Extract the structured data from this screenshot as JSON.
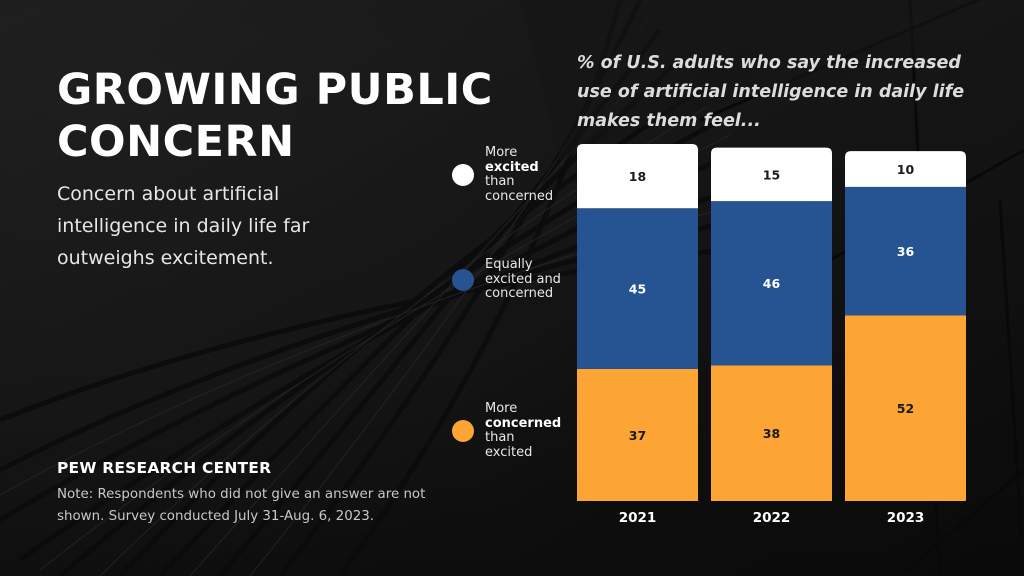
{
  "header": {
    "title_line1": "GROWING PUBLIC",
    "title_line2": "CONCERN",
    "subtitle": "Concern about artificial intelligence in daily life far outweighs excitement."
  },
  "footer": {
    "source": "PEW RESEARCH CENTER",
    "note": "Note: Respondents who did not give an answer are not shown. Survey conducted July 31-Aug. 6, 2023."
  },
  "legend": [
    {
      "pre": "More",
      "bold": "excited",
      "post": "than concerned",
      "color": "#ffffff"
    },
    {
      "pre": "Equally excited and concerned",
      "bold": "",
      "post": "",
      "color": "#265392"
    },
    {
      "pre": "More",
      "bold": "concerned",
      "post": "than excited",
      "color": "#fca534"
    }
  ],
  "chart_data": {
    "type": "bar",
    "stacked": true,
    "title": "% of U.S. adults who say the increased use of artificial intelligence in daily life makes them feel...",
    "xlabel": "",
    "ylabel": "",
    "ylim": [
      0,
      100
    ],
    "grid": false,
    "legend_position": "left",
    "categories": [
      "2021",
      "2022",
      "2023"
    ],
    "series": [
      {
        "name": "More concerned than excited",
        "color": "#fca534",
        "label_color": "#1a1a1a",
        "values": [
          37,
          38,
          52
        ]
      },
      {
        "name": "Equally excited and concerned",
        "color": "#265392",
        "label_color": "#ffffff",
        "values": [
          45,
          46,
          36
        ]
      },
      {
        "name": "More excited than concerned",
        "color": "#ffffff",
        "label_color": "#1a1a1a",
        "values": [
          18,
          15,
          10
        ]
      }
    ]
  }
}
